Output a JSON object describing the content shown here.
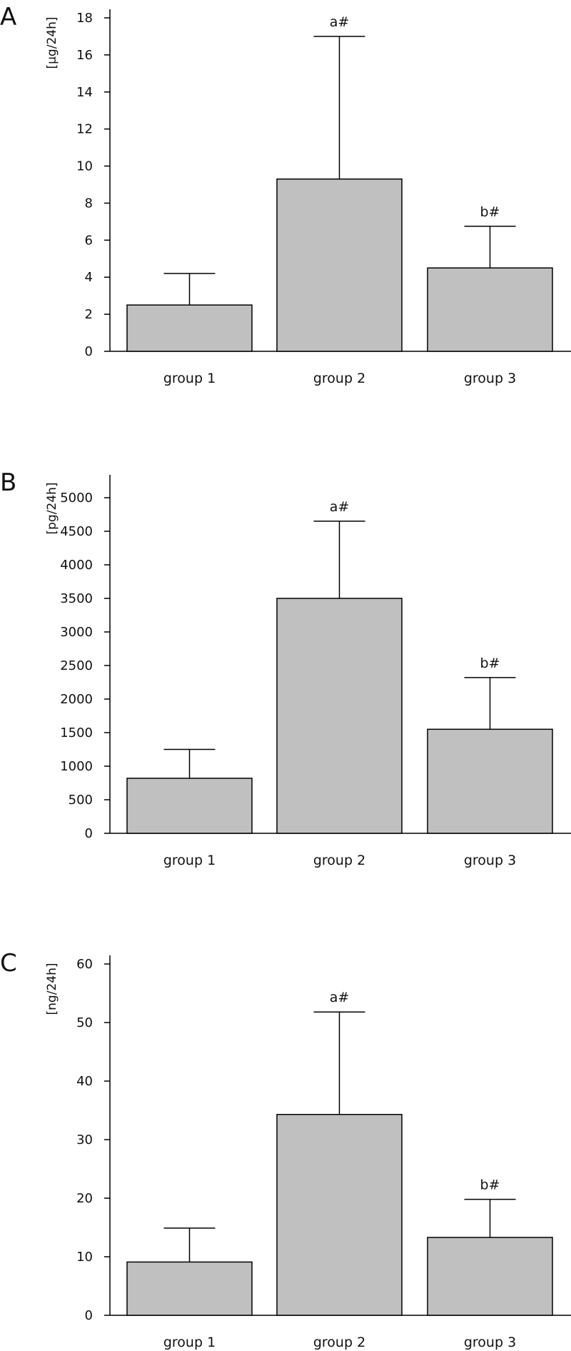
{
  "chart_data": [
    {
      "type": "bar",
      "panel": "A",
      "ylabel": "[µg/24h]",
      "categories": [
        "group 1",
        "group 2",
        "group 3"
      ],
      "values": [
        2.5,
        9.3,
        4.5
      ],
      "error_upper": [
        4.2,
        17.0,
        6.75
      ],
      "annotations": [
        "",
        "a#",
        "b#"
      ],
      "yticks": [
        0,
        2,
        4,
        6,
        8,
        10,
        12,
        14,
        16,
        18
      ],
      "ylim": [
        0,
        19
      ],
      "colors": {
        "bar": "#c0c0c0",
        "stroke": "#000000"
      }
    },
    {
      "type": "bar",
      "panel": "B",
      "ylabel": "[pg/24h]",
      "categories": [
        "group 1",
        "group 2",
        "group 3"
      ],
      "values": [
        820,
        3500,
        1550
      ],
      "error_upper": [
        1250,
        4650,
        2320
      ],
      "annotations": [
        "",
        "a#",
        "b#"
      ],
      "yticks": [
        0,
        500,
        1000,
        1500,
        2000,
        2500,
        3000,
        3500,
        4000,
        4500,
        5000
      ],
      "ylim": [
        0,
        5200
      ],
      "colors": {
        "bar": "#c0c0c0",
        "stroke": "#000000"
      }
    },
    {
      "type": "bar",
      "panel": "C",
      "ylabel": "[ng/24h]",
      "categories": [
        "group 1",
        "group 2",
        "group 3"
      ],
      "values": [
        9.1,
        34.3,
        13.3
      ],
      "error_upper": [
        14.9,
        51.8,
        19.8
      ],
      "annotations": [
        "",
        "a#",
        "b#"
      ],
      "yticks": [
        0,
        10,
        20,
        30,
        40,
        50,
        60
      ],
      "ylim": [
        0,
        60
      ],
      "colors": {
        "bar": "#c0c0c0",
        "stroke": "#000000"
      }
    }
  ]
}
